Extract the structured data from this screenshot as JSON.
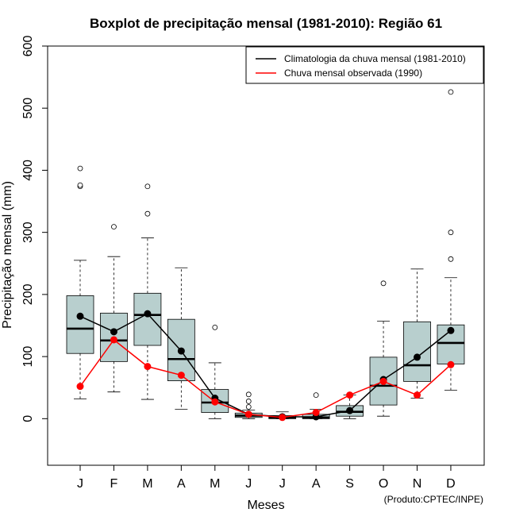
{
  "chart_data": {
    "type": "boxplot",
    "title": "Boxplot de precipitação mensal (1981-2010): Região 61",
    "xlabel": "Meses",
    "ylabel": "Precipitação mensal (mm)",
    "ylim": [
      -75,
      600
    ],
    "yticks": [
      0,
      100,
      200,
      300,
      400,
      500,
      600
    ],
    "categories": [
      "J",
      "F",
      "M",
      "A",
      "M",
      "J",
      "J",
      "A",
      "S",
      "O",
      "N",
      "D"
    ],
    "boxes": [
      {
        "whisker_low": 32,
        "q1": 105,
        "median": 145,
        "q3": 198,
        "whisker_high": 255,
        "outliers": [
          374,
          376,
          403
        ]
      },
      {
        "whisker_low": 43,
        "q1": 92,
        "median": 126,
        "q3": 170,
        "whisker_high": 261,
        "outliers": [
          309
        ]
      },
      {
        "whisker_low": 31,
        "q1": 118,
        "median": 167,
        "q3": 202,
        "whisker_high": 291,
        "outliers": [
          330,
          374
        ]
      },
      {
        "whisker_low": 15,
        "q1": 61,
        "median": 96,
        "q3": 160,
        "whisker_high": 243,
        "outliers": []
      },
      {
        "whisker_low": 0,
        "q1": 10,
        "median": 26,
        "q3": 47,
        "whisker_high": 90,
        "outliers": [
          147
        ]
      },
      {
        "whisker_low": 0,
        "q1": 2,
        "median": 5,
        "q3": 9,
        "whisker_high": 14,
        "outliers": [
          19,
          28,
          39
        ]
      },
      {
        "whisker_low": 0,
        "q1": 0,
        "median": 2,
        "q3": 5,
        "whisker_high": 11,
        "outliers": []
      },
      {
        "whisker_low": 0,
        "q1": 0,
        "median": 2,
        "q3": 7,
        "whisker_high": 15,
        "outliers": [
          38
        ]
      },
      {
        "whisker_low": 0,
        "q1": 4,
        "median": 11,
        "q3": 21,
        "whisker_high": 38,
        "outliers": []
      },
      {
        "whisker_low": 4,
        "q1": 22,
        "median": 53,
        "q3": 99,
        "whisker_high": 157,
        "outliers": [
          218
        ]
      },
      {
        "whisker_low": 33,
        "q1": 60,
        "median": 86,
        "q3": 156,
        "whisker_high": 241,
        "outliers": []
      },
      {
        "whisker_low": 46,
        "q1": 88,
        "median": 122,
        "q3": 151,
        "whisker_high": 227,
        "outliers": [
          257,
          300,
          526
        ]
      }
    ],
    "series": [
      {
        "name": "Climatologia da chuva mensal (1981-2010)",
        "color": "#000000",
        "values": [
          165,
          140,
          169,
          109,
          33,
          7,
          3,
          3,
          13,
          63,
          99,
          142
        ]
      },
      {
        "name": "Chuva mensal observada (1990)",
        "color": "#ff0000",
        "values": [
          52,
          127,
          84,
          70,
          27,
          7,
          2,
          10,
          38,
          60,
          38,
          87
        ]
      }
    ],
    "box_fill": "#b8cfce",
    "legend_position": "top-right",
    "credit": "(Produto:CPTEC/INPE)"
  }
}
